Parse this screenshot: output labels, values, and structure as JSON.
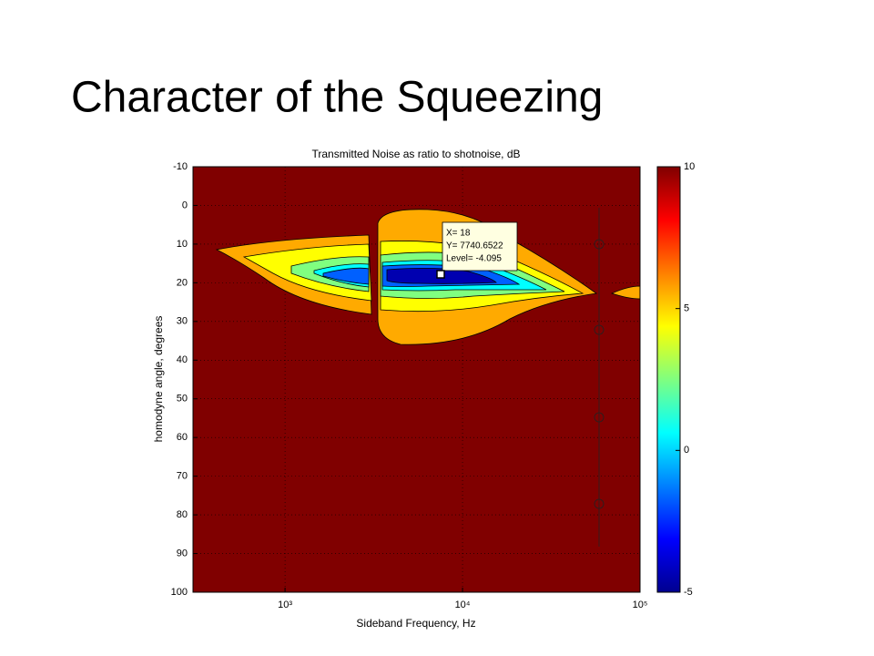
{
  "slide_title": "Character of the Squeezing",
  "chart_data": {
    "type": "contour",
    "title": "Transmitted Noise as ratio to shotnoise, dB",
    "xlabel": "Sideband Frequency, Hz",
    "ylabel": "homodyne angle, degrees",
    "xscale": "log",
    "xlim": [
      303,
      100000
    ],
    "xticks": [
      {
        "value": 1000,
        "label": "10³"
      },
      {
        "value": 10000,
        "label": "10⁴"
      },
      {
        "value": 100000,
        "label": "10⁵"
      }
    ],
    "ylim": [
      -10,
      100
    ],
    "y_reversed": true,
    "yticks": [
      -10,
      0,
      10,
      20,
      30,
      40,
      50,
      60,
      70,
      80,
      90,
      100
    ],
    "grid": true,
    "background_color": "#800000",
    "colorbar": {
      "colormap": "jet",
      "lim": [
        -5,
        10
      ],
      "ticks": [
        -5,
        0,
        5,
        10
      ]
    },
    "datatip": [
      "X= 18",
      "Y= 7740.6522",
      "Level= -4.095"
    ]
  }
}
